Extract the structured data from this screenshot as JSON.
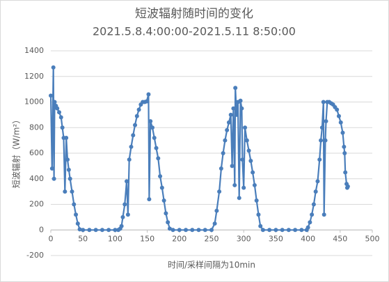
{
  "chart_data": {
    "type": "line",
    "title": "短波辐射随时间的变化",
    "subtitle": "2021.5.8.4:00:00-2021.5.11 8:50:00",
    "x_label": "时间/采样间隔为10min",
    "y_label": "短波辐射（W/m²）",
    "xlim": [
      0,
      500
    ],
    "xticks": [
      0,
      50,
      100,
      150,
      200,
      250,
      300,
      350,
      400,
      450,
      500
    ],
    "ylim": [
      -200,
      1400
    ],
    "yticks": [
      -200,
      0,
      200,
      400,
      600,
      800,
      1000,
      1200,
      1400
    ],
    "grid": true,
    "series": [
      {
        "name": "短波辐射",
        "color": "#4a7ebb",
        "x": [
          0,
          2,
          4,
          5,
          6,
          8,
          10,
          13,
          16,
          18,
          20,
          22,
          24,
          26,
          28,
          30,
          33,
          36,
          39,
          42,
          45,
          50,
          60,
          70,
          80,
          90,
          100,
          105,
          108,
          110,
          112,
          115,
          118,
          120,
          122,
          125,
          128,
          131,
          134,
          137,
          140,
          143,
          146,
          149,
          152,
          153,
          155,
          158,
          161,
          164,
          167,
          170,
          173,
          176,
          179,
          182,
          185,
          190,
          200,
          210,
          220,
          230,
          240,
          250,
          255,
          258,
          262,
          265,
          268,
          271,
          274,
          277,
          280,
          282,
          284,
          286,
          287,
          289,
          291,
          293,
          295,
          297,
          298,
          300,
          302,
          305,
          308,
          311,
          314,
          317,
          320,
          323,
          326,
          330,
          340,
          350,
          360,
          370,
          380,
          390,
          398,
          400,
          403,
          406,
          409,
          412,
          415,
          418,
          420,
          422,
          424,
          425,
          427,
          428,
          430,
          433,
          436,
          439,
          442,
          445,
          448,
          451,
          454,
          456,
          457,
          458,
          460,
          461,
          462
        ],
        "values": [
          1050,
          480,
          1270,
          400,
          1000,
          970,
          950,
          920,
          880,
          800,
          720,
          300,
          720,
          550,
          470,
          400,
          300,
          200,
          120,
          50,
          5,
          0,
          0,
          0,
          0,
          0,
          0,
          0,
          10,
          30,
          100,
          200,
          380,
          120,
          550,
          650,
          740,
          820,
          890,
          940,
          980,
          1000,
          1000,
          1005,
          1060,
          240,
          850,
          800,
          720,
          640,
          560,
          420,
          330,
          230,
          130,
          60,
          10,
          0,
          0,
          0,
          0,
          0,
          0,
          0,
          50,
          150,
          300,
          480,
          600,
          700,
          780,
          840,
          900,
          500,
          950,
          350,
          1110,
          900,
          1000,
          250,
          1010,
          950,
          550,
          330,
          800,
          700,
          620,
          540,
          450,
          350,
          230,
          120,
          30,
          0,
          0,
          0,
          0,
          0,
          0,
          0,
          0,
          20,
          60,
          120,
          200,
          300,
          380,
          550,
          700,
          800,
          1000,
          120,
          700,
          850,
          1000,
          1000,
          990,
          980,
          960,
          940,
          890,
          840,
          760,
          650,
          600,
          450,
          360,
          330,
          340
        ]
      }
    ]
  }
}
